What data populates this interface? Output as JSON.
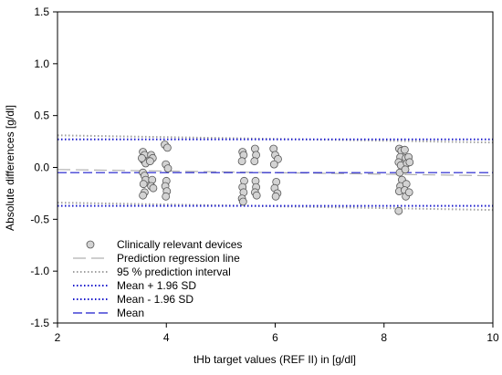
{
  "chart_data": {
    "type": "scatter",
    "title": "",
    "xlabel": "tHb target values (REF II) in [g/dl]",
    "ylabel": "Absolute differences [g/dl]",
    "xlim": [
      2,
      10
    ],
    "ylim": [
      -1.5,
      1.5
    ],
    "xticks": [
      2,
      4,
      6,
      8,
      10
    ],
    "yticks": [
      -1.5,
      -1.0,
      -0.5,
      0.0,
      0.5,
      1.0,
      1.5
    ],
    "xtick_labels": [
      "2",
      "4",
      "6",
      "8",
      "10"
    ],
    "ytick_labels": [
      "-1.5",
      "-1.0",
      "-0.5",
      "0.0",
      "0.5",
      "1.0",
      "1.5"
    ],
    "grid": false,
    "legend_position": "bottom-left",
    "series": [
      {
        "name": "Clinically relevant devices",
        "kind": "points",
        "color": "#d3d3d3",
        "points": [
          [
            3.57,
            0.15
          ],
          [
            3.6,
            0.12
          ],
          [
            3.58,
            0.07
          ],
          [
            3.62,
            0.04
          ],
          [
            3.55,
            0.09
          ],
          [
            3.57,
            -0.05
          ],
          [
            3.6,
            -0.08
          ],
          [
            3.62,
            -0.12
          ],
          [
            3.58,
            -0.16
          ],
          [
            3.6,
            -0.24
          ],
          [
            3.57,
            -0.27
          ],
          [
            3.72,
            0.12
          ],
          [
            3.75,
            0.09
          ],
          [
            3.7,
            0.06
          ],
          [
            3.74,
            -0.12
          ],
          [
            3.72,
            -0.18
          ],
          [
            3.76,
            -0.2
          ],
          [
            3.97,
            0.22
          ],
          [
            4.02,
            0.19
          ],
          [
            3.99,
            0.03
          ],
          [
            4.03,
            -0.01
          ],
          [
            4.0,
            -0.13
          ],
          [
            3.98,
            -0.18
          ],
          [
            4.01,
            -0.23
          ],
          [
            3.99,
            -0.28
          ],
          [
            5.4,
            0.15
          ],
          [
            5.42,
            0.12
          ],
          [
            5.39,
            0.06
          ],
          [
            5.43,
            -0.13
          ],
          [
            5.4,
            -0.19
          ],
          [
            5.42,
            -0.24
          ],
          [
            5.39,
            -0.3
          ],
          [
            5.41,
            -0.33
          ],
          [
            5.63,
            0.18
          ],
          [
            5.65,
            0.12
          ],
          [
            5.62,
            0.06
          ],
          [
            5.64,
            -0.13
          ],
          [
            5.65,
            -0.19
          ],
          [
            5.63,
            -0.24
          ],
          [
            5.66,
            -0.27
          ],
          [
            5.97,
            0.18
          ],
          [
            6.0,
            0.12
          ],
          [
            6.05,
            0.08
          ],
          [
            5.98,
            0.03
          ],
          [
            6.02,
            -0.14
          ],
          [
            5.99,
            -0.2
          ],
          [
            6.04,
            -0.25
          ],
          [
            6.01,
            -0.28
          ],
          [
            8.28,
            0.18
          ],
          [
            8.32,
            0.16
          ],
          [
            8.3,
            0.1
          ],
          [
            8.27,
            0.05
          ],
          [
            8.31,
            0.02
          ],
          [
            8.29,
            -0.05
          ],
          [
            8.33,
            -0.12
          ],
          [
            8.3,
            -0.18
          ],
          [
            8.28,
            -0.23
          ],
          [
            8.27,
            -0.42
          ],
          [
            8.38,
            0.17
          ],
          [
            8.4,
            0.09
          ],
          [
            8.42,
            0.04
          ],
          [
            8.39,
            -0.02
          ],
          [
            8.41,
            -0.16
          ],
          [
            8.38,
            -0.22
          ],
          [
            8.4,
            -0.28
          ],
          [
            8.45,
            0.1
          ],
          [
            8.47,
            0.05
          ],
          [
            8.46,
            -0.24
          ]
        ]
      },
      {
        "name": "Prediction regression line",
        "kind": "line",
        "style": "long-dash",
        "color": "#b0b0b0",
        "x": [
          2,
          10
        ],
        "y": [
          -0.02,
          -0.08
        ]
      },
      {
        "name": "95 % prediction interval",
        "kind": "line",
        "style": "dot",
        "color": "#a0a0a0",
        "x": [
          2,
          10
        ],
        "y": [
          0.31,
          0.24
        ]
      },
      {
        "name": "",
        "kind": "line",
        "style": "dot",
        "color": "#a0a0a0",
        "x": [
          2,
          10
        ],
        "y": [
          -0.34,
          -0.41
        ]
      },
      {
        "name": "Mean + 1.96 SD",
        "kind": "line",
        "style": "dot",
        "color": "#1a1acc",
        "x": [
          2,
          10
        ],
        "y": [
          0.27,
          0.27
        ]
      },
      {
        "name": "Mean - 1.96 SD",
        "kind": "line",
        "style": "dot",
        "color": "#1a1acc",
        "x": [
          2,
          10
        ],
        "y": [
          -0.37,
          -0.37
        ]
      },
      {
        "name": "Mean",
        "kind": "line",
        "style": "dash",
        "color": "#1a1acc",
        "x": [
          2,
          10
        ],
        "y": [
          -0.05,
          -0.05
        ]
      }
    ]
  }
}
